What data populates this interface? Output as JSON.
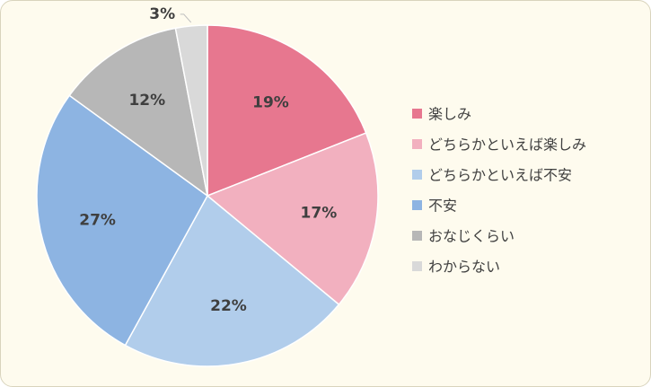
{
  "chart_data": {
    "type": "pie",
    "categories": [
      "楽しみ",
      "どちらかといえば楽しみ",
      "どちらかといえば不安",
      "不安",
      "おなじくらい",
      "わからない"
    ],
    "values": [
      19,
      17,
      22,
      27,
      12,
      3
    ],
    "labels": [
      "19%",
      "17%",
      "22%",
      "27%",
      "12%",
      "3%"
    ],
    "colors": [
      "#e7778f",
      "#f2b0bf",
      "#b1cdeb",
      "#8db4e2",
      "#b7b7b7",
      "#d9d9d9"
    ],
    "start_angle_deg": 0,
    "direction": "clockwise",
    "legend_position": "right",
    "title": ""
  }
}
